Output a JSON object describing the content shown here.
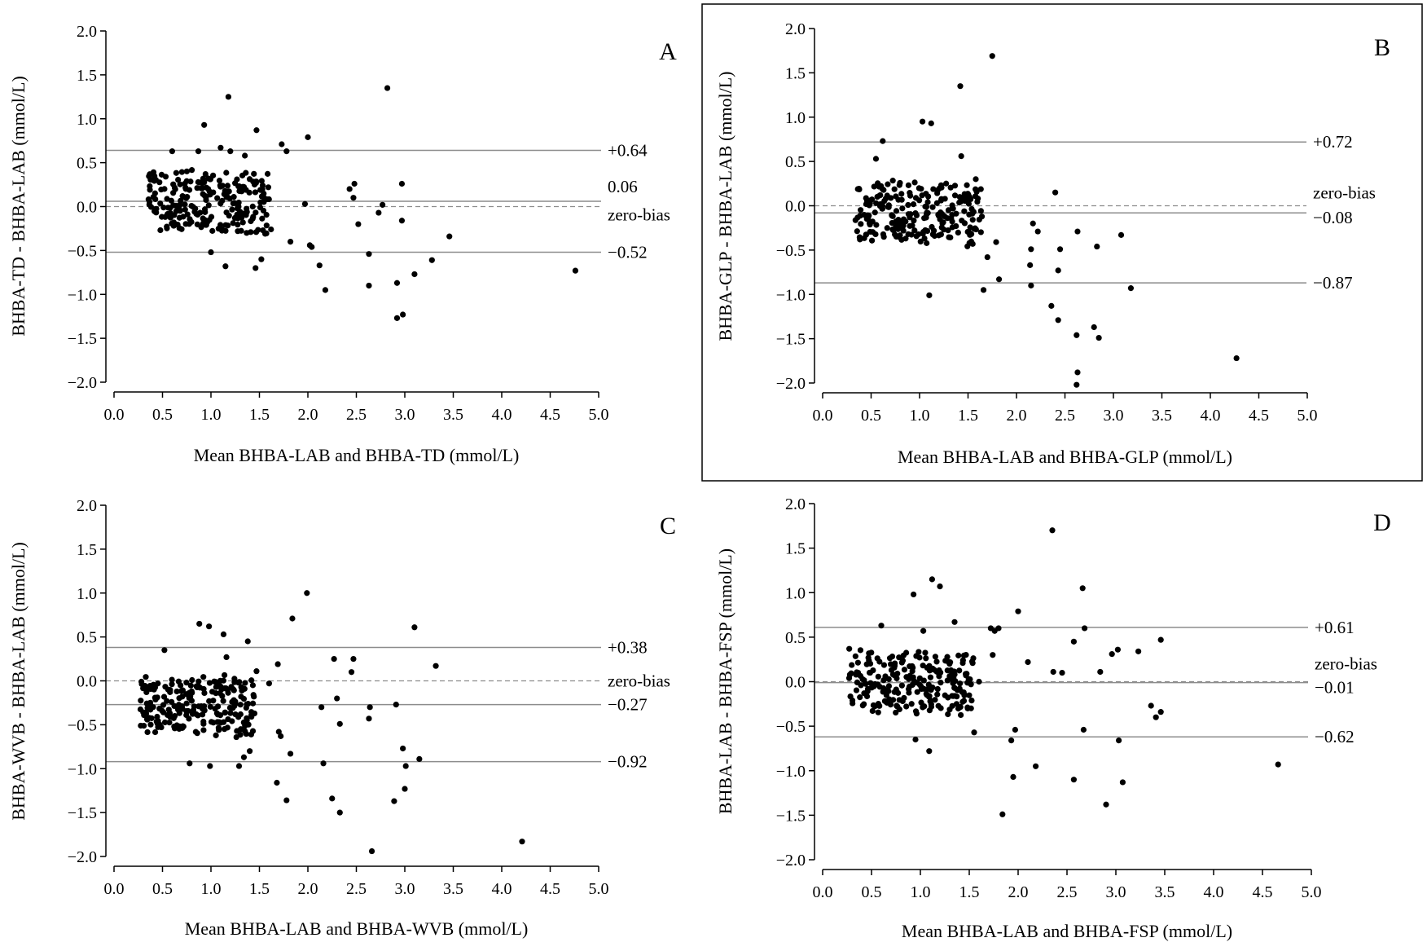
{
  "chart_data": [
    {
      "type": "scatter",
      "panel": "A",
      "xlabel": "Mean BHBA-LAB and BHBA-TD (mmol/L)",
      "ylabel": "BHBA-TD - BHBA-LAB (mmol/L)",
      "xlim": [
        0,
        5
      ],
      "ylim": [
        -2,
        2
      ],
      "xticks": [
        "0.0",
        "0.5",
        "1.0",
        "1.5",
        "2.0",
        "2.5",
        "3.0",
        "3.5",
        "4.0",
        "4.5",
        "5.0"
      ],
      "yticks": [
        "2.0",
        "1.5",
        "1.0",
        "0.5",
        "0.0",
        "−0.5",
        "−1.0",
        "−1.5",
        "−2.0"
      ],
      "lines": [
        {
          "name": "upper-loa",
          "value": 0.64,
          "label": "+0.64",
          "style": "solid"
        },
        {
          "name": "mean-bias",
          "value": 0.06,
          "label": "0.06",
          "style": "solid"
        },
        {
          "name": "zero-bias",
          "value": 0.0,
          "label": "zero-bias",
          "style": "dashed"
        },
        {
          "name": "lower-loa",
          "value": -0.52,
          "label": "−0.52",
          "style": "solid"
        }
      ],
      "cluster": {
        "xmin": 0.35,
        "xmax": 1.6,
        "bias": 0.06,
        "spread": 0.3,
        "count": 230
      },
      "points": [
        [
          1.18,
          1.25
        ],
        [
          0.93,
          0.93
        ],
        [
          1.47,
          0.87
        ],
        [
          2.0,
          0.79
        ],
        [
          1.73,
          0.71
        ],
        [
          1.78,
          0.63
        ],
        [
          2.82,
          1.35
        ],
        [
          1.1,
          0.67
        ],
        [
          1.2,
          0.63
        ],
        [
          0.6,
          0.63
        ],
        [
          0.87,
          0.63
        ],
        [
          1.35,
          0.58
        ],
        [
          2.43,
          0.2
        ],
        [
          2.48,
          0.26
        ],
        [
          2.47,
          0.1
        ],
        [
          2.97,
          0.26
        ],
        [
          1.97,
          0.03
        ],
        [
          2.77,
          0.02
        ],
        [
          2.73,
          -0.07
        ],
        [
          2.52,
          -0.2
        ],
        [
          2.97,
          -0.16
        ],
        [
          3.46,
          -0.34
        ],
        [
          2.02,
          -0.44
        ],
        [
          2.04,
          -0.46
        ],
        [
          1.82,
          -0.4
        ],
        [
          1.62,
          -0.26
        ],
        [
          2.63,
          -0.54
        ],
        [
          1.52,
          -0.6
        ],
        [
          1.46,
          -0.7
        ],
        [
          1.15,
          -0.68
        ],
        [
          1.0,
          -0.52
        ],
        [
          2.12,
          -0.67
        ],
        [
          2.18,
          -0.95
        ],
        [
          2.63,
          -0.9
        ],
        [
          2.92,
          -0.87
        ],
        [
          3.28,
          -0.61
        ],
        [
          3.1,
          -0.77
        ],
        [
          2.92,
          -1.27
        ],
        [
          2.98,
          -1.23
        ],
        [
          4.76,
          -0.73
        ]
      ]
    },
    {
      "type": "scatter",
      "panel": "B",
      "xlabel": "Mean BHBA-LAB and BHBA-GLP (mmol/L)",
      "ylabel": "BHBA-GLP - BHBA-LAB (mmol/L)",
      "xlim": [
        0,
        5
      ],
      "ylim": [
        -2,
        2
      ],
      "xticks": [
        "0.0",
        "0.5",
        "1.0",
        "1.5",
        "2.0",
        "2.5",
        "3.0",
        "3.5",
        "4.0",
        "4.5",
        "5.0"
      ],
      "yticks": [
        "2.0",
        "1.5",
        "1.0",
        "0.5",
        "0.0",
        "−0.5",
        "−1.0",
        "−1.5",
        "−2.0"
      ],
      "lines": [
        {
          "name": "upper-loa",
          "value": 0.72,
          "label": "+0.72",
          "style": "solid"
        },
        {
          "name": "zero-bias",
          "value": 0.0,
          "label": "zero-bias",
          "style": "dashed"
        },
        {
          "name": "mean-bias",
          "value": -0.08,
          "label": "−0.08",
          "style": "solid"
        },
        {
          "name": "lower-loa",
          "value": -0.87,
          "label": "−0.87",
          "style": "solid"
        }
      ],
      "cluster": {
        "xmin": 0.33,
        "xmax": 1.65,
        "bias": -0.08,
        "spread": 0.32,
        "count": 230
      },
      "points": [
        [
          1.75,
          1.69
        ],
        [
          1.42,
          1.35
        ],
        [
          1.03,
          0.95
        ],
        [
          1.12,
          0.93
        ],
        [
          0.62,
          0.73
        ],
        [
          1.43,
          0.56
        ],
        [
          0.55,
          0.53
        ],
        [
          1.58,
          0.3
        ],
        [
          2.4,
          0.15
        ],
        [
          2.17,
          -0.2
        ],
        [
          2.22,
          -0.29
        ],
        [
          2.63,
          -0.29
        ],
        [
          2.45,
          -0.49
        ],
        [
          2.83,
          -0.46
        ],
        [
          2.15,
          -0.49
        ],
        [
          2.14,
          -0.67
        ],
        [
          2.43,
          -0.73
        ],
        [
          3.08,
          -0.33
        ],
        [
          1.79,
          -0.41
        ],
        [
          1.82,
          -0.83
        ],
        [
          2.15,
          -0.9
        ],
        [
          1.66,
          -0.95
        ],
        [
          1.1,
          -1.01
        ],
        [
          3.18,
          -0.93
        ],
        [
          2.36,
          -1.13
        ],
        [
          2.43,
          -1.29
        ],
        [
          2.62,
          -1.46
        ],
        [
          2.8,
          -1.37
        ],
        [
          2.85,
          -1.49
        ],
        [
          2.63,
          -1.88
        ],
        [
          2.62,
          -2.02
        ],
        [
          4.27,
          -1.72
        ],
        [
          1.7,
          -0.58
        ]
      ]
    },
    {
      "type": "scatter",
      "panel": "C",
      "xlabel": "Mean BHBA-LAB and BHBA-WVB (mmol/L)",
      "ylabel": "BHBA-WVB - BHBA-LAB (mmol/L)",
      "xlim": [
        0,
        5
      ],
      "ylim": [
        -2,
        2
      ],
      "xticks": [
        "0.0",
        "0.5",
        "1.0",
        "1.5",
        "2.0",
        "2.5",
        "3.0",
        "3.5",
        "4.0",
        "4.5",
        "5.0"
      ],
      "yticks": [
        "2.0",
        "1.5",
        "1.0",
        "0.5",
        "0.0",
        "−0.5",
        "−1.0",
        "−1.5",
        "−2.0"
      ],
      "lines": [
        {
          "name": "upper-loa",
          "value": 0.38,
          "label": "+0.38",
          "style": "solid"
        },
        {
          "name": "zero-bias",
          "value": 0.0,
          "label": "zero-bias",
          "style": "dashed"
        },
        {
          "name": "mean-bias",
          "value": -0.27,
          "label": "−0.27",
          "style": "solid"
        },
        {
          "name": "lower-loa",
          "value": -0.92,
          "label": "−0.92",
          "style": "solid"
        }
      ],
      "cluster": {
        "xmin": 0.27,
        "xmax": 1.45,
        "bias": -0.27,
        "spread": 0.3,
        "count": 230
      },
      "points": [
        [
          1.99,
          1.0
        ],
        [
          1.84,
          0.71
        ],
        [
          0.88,
          0.65
        ],
        [
          0.98,
          0.62
        ],
        [
          1.13,
          0.53
        ],
        [
          3.1,
          0.61
        ],
        [
          1.38,
          0.45
        ],
        [
          3.32,
          0.17
        ],
        [
          0.52,
          0.35
        ],
        [
          1.16,
          0.27
        ],
        [
          2.27,
          0.25
        ],
        [
          2.47,
          0.25
        ],
        [
          2.45,
          0.1
        ],
        [
          1.69,
          0.19
        ],
        [
          1.47,
          0.11
        ],
        [
          1.6,
          -0.03
        ],
        [
          2.14,
          -0.3
        ],
        [
          2.64,
          -0.3
        ],
        [
          2.91,
          -0.27
        ],
        [
          2.3,
          -0.2
        ],
        [
          2.63,
          -0.43
        ],
        [
          2.33,
          -0.49
        ],
        [
          1.7,
          -0.58
        ],
        [
          1.72,
          -0.63
        ],
        [
          2.98,
          -0.77
        ],
        [
          3.15,
          -0.89
        ],
        [
          1.82,
          -0.83
        ],
        [
          2.16,
          -0.94
        ],
        [
          1.4,
          -0.8
        ],
        [
          0.78,
          -0.94
        ],
        [
          0.99,
          -0.97
        ],
        [
          1.29,
          -0.97
        ],
        [
          1.34,
          -0.87
        ],
        [
          3.01,
          -0.97
        ],
        [
          1.68,
          -1.16
        ],
        [
          1.78,
          -1.36
        ],
        [
          2.25,
          -1.34
        ],
        [
          2.33,
          -1.5
        ],
        [
          2.89,
          -1.37
        ],
        [
          3.0,
          -1.23
        ],
        [
          2.66,
          -1.94
        ],
        [
          4.21,
          -1.83
        ]
      ]
    },
    {
      "type": "scatter",
      "panel": "D",
      "xlabel": "Mean BHBA-LAB and BHBA-FSP (mmol/L)",
      "ylabel": "BHBA-LAB - BHBA-FSP (mmol/L)",
      "xlim": [
        0,
        5
      ],
      "ylim": [
        -2,
        2
      ],
      "xticks": [
        "0.0",
        "0.5",
        "1.0",
        "1.5",
        "2.0",
        "2.5",
        "3.0",
        "3.5",
        "4.0",
        "4.5",
        "5.0"
      ],
      "yticks": [
        "2.0",
        "1.5",
        "1.0",
        "0.5",
        "0.0",
        "−0.5",
        "−1.0",
        "−1.5",
        "−2.0"
      ],
      "lines": [
        {
          "name": "upper-loa",
          "value": 0.61,
          "label": "+0.61",
          "style": "solid"
        },
        {
          "name": "zero-bias",
          "value": 0.0,
          "label": "zero-bias",
          "style": "dashed"
        },
        {
          "name": "mean-bias",
          "value": -0.01,
          "label": "−0.01",
          "style": "solid"
        },
        {
          "name": "lower-loa",
          "value": -0.62,
          "label": "−0.62",
          "style": "solid"
        }
      ],
      "cluster": {
        "xmin": 0.27,
        "xmax": 1.55,
        "bias": -0.01,
        "spread": 0.32,
        "count": 230
      },
      "points": [
        [
          2.35,
          1.7
        ],
        [
          1.12,
          1.15
        ],
        [
          1.2,
          1.07
        ],
        [
          2.66,
          1.05
        ],
        [
          0.93,
          0.98
        ],
        [
          1.35,
          0.67
        ],
        [
          0.6,
          0.63
        ],
        [
          2.68,
          0.6
        ],
        [
          1.72,
          0.6
        ],
        [
          1.76,
          0.57
        ],
        [
          1.8,
          0.6
        ],
        [
          2.0,
          0.79
        ],
        [
          1.03,
          0.57
        ],
        [
          2.57,
          0.45
        ],
        [
          3.46,
          0.47
        ],
        [
          3.02,
          0.36
        ],
        [
          2.96,
          0.31
        ],
        [
          3.23,
          0.34
        ],
        [
          1.74,
          0.3
        ],
        [
          2.1,
          0.22
        ],
        [
          2.84,
          0.11
        ],
        [
          2.36,
          0.11
        ],
        [
          2.45,
          0.1
        ],
        [
          1.6,
          0.0
        ],
        [
          3.36,
          -0.27
        ],
        [
          3.41,
          -0.4
        ],
        [
          3.46,
          -0.34
        ],
        [
          1.97,
          -0.54
        ],
        [
          2.67,
          -0.54
        ],
        [
          1.93,
          -0.66
        ],
        [
          3.03,
          -0.66
        ],
        [
          0.95,
          -0.65
        ],
        [
          1.09,
          -0.78
        ],
        [
          2.18,
          -0.95
        ],
        [
          1.95,
          -1.07
        ],
        [
          2.57,
          -1.1
        ],
        [
          3.07,
          -1.13
        ],
        [
          2.9,
          -1.38
        ],
        [
          1.84,
          -1.49
        ],
        [
          4.66,
          -0.93
        ],
        [
          1.55,
          -0.57
        ]
      ]
    }
  ]
}
